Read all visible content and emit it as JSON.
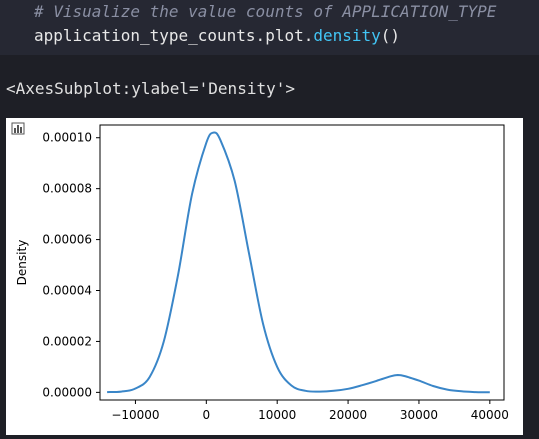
{
  "cell": {
    "comment": "# Visualize the value counts of APPLICATION_TYPE",
    "code_prefix": "application_type_counts.plot.",
    "code_fn": "density",
    "code_suffix": "()"
  },
  "output": {
    "repr": "<AxesSubplot:ylabel='Density'>"
  },
  "icons": {
    "plot_icon": "bar-chart-icon"
  },
  "chart_data": {
    "type": "line",
    "ylabel": "Density",
    "xlim": [
      -15000,
      42000
    ],
    "ylim": [
      -3e-06,
      0.000105
    ],
    "xticks": [
      "−10000",
      "0",
      "10000",
      "20000",
      "30000",
      "40000"
    ],
    "xtick_values": [
      -10000,
      0,
      10000,
      20000,
      30000,
      40000
    ],
    "yticks": [
      "0.00000",
      "0.00002",
      "0.00004",
      "0.00006",
      "0.00008",
      "0.00010"
    ],
    "ytick_values": [
      0.0,
      2e-05,
      4e-05,
      6e-05,
      8e-05,
      0.0001
    ],
    "series": [
      {
        "color": "#3a86c8",
        "x": [
          -14000,
          -12000,
          -10000,
          -8000,
          -6000,
          -4000,
          -2000,
          0,
          1000,
          2000,
          4000,
          6000,
          8000,
          10000,
          12000,
          14000,
          16000,
          18000,
          20000,
          22000,
          24000,
          26000,
          27000,
          28000,
          30000,
          32000,
          34000,
          36000,
          38000,
          40000
        ],
        "y": [
          1e-07,
          3e-07,
          1.5e-06,
          6e-06,
          2e-05,
          4.6e-05,
          7.8e-05,
          9.8e-05,
          0.000102,
          9.9e-05,
          8.3e-05,
          5.5e-05,
          2.7e-05,
          1e-05,
          2.7e-06,
          6e-07,
          3e-07,
          6e-07,
          1.4e-06,
          2.8e-06,
          4.5e-06,
          6.3e-06,
          6.8e-06,
          6.4e-06,
          4.6e-06,
          2.5e-06,
          1.1e-06,
          4e-07,
          1e-07,
          3e-08
        ]
      }
    ]
  }
}
